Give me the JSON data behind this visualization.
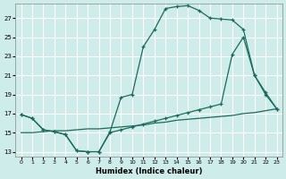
{
  "xlabel": "Humidex (Indice chaleur)",
  "bg_color": "#ceecea",
  "line_color": "#1a6b5a",
  "grid_color": "#ffffff",
  "xlim": [
    -0.5,
    23.5
  ],
  "ylim": [
    12.5,
    28.5
  ],
  "xticks": [
    0,
    1,
    2,
    3,
    4,
    5,
    6,
    7,
    8,
    9,
    10,
    11,
    12,
    13,
    14,
    15,
    16,
    17,
    18,
    19,
    20,
    21,
    22,
    23
  ],
  "yticks": [
    13,
    15,
    17,
    19,
    21,
    23,
    25,
    27
  ],
  "curve1_x": [
    0,
    1,
    2,
    3,
    4,
    5,
    6,
    7,
    8,
    9,
    10,
    11,
    12,
    13,
    14,
    15,
    16,
    17,
    18,
    19,
    20,
    21,
    22,
    23
  ],
  "curve1_y": [
    16.9,
    16.5,
    15.3,
    15.1,
    14.8,
    13.1,
    13.0,
    13.0,
    15.1,
    18.7,
    19.0,
    24.0,
    25.8,
    28.0,
    28.2,
    28.3,
    27.8,
    27.0,
    26.9,
    26.8,
    25.8,
    21.0,
    19.0,
    17.5
  ],
  "curve2_x": [
    0,
    1,
    2,
    3,
    4,
    5,
    6,
    7,
    8,
    9,
    10,
    11,
    12,
    13,
    14,
    15,
    16,
    17,
    18,
    19,
    20,
    21,
    22,
    23
  ],
  "curve2_y": [
    15.0,
    15.0,
    15.1,
    15.2,
    15.2,
    15.3,
    15.4,
    15.4,
    15.5,
    15.6,
    15.7,
    15.8,
    16.0,
    16.1,
    16.3,
    16.4,
    16.5,
    16.6,
    16.7,
    16.8,
    17.0,
    17.1,
    17.3,
    17.5
  ],
  "curve3_x": [
    0,
    1,
    2,
    3,
    4,
    5,
    6,
    7,
    8,
    9,
    10,
    11,
    12,
    13,
    14,
    15,
    16,
    17,
    18,
    19,
    20,
    21,
    22,
    23
  ],
  "curve3_y": [
    16.9,
    16.5,
    15.3,
    15.1,
    14.8,
    13.1,
    13.0,
    13.0,
    15.0,
    15.3,
    15.6,
    15.9,
    16.2,
    16.5,
    16.8,
    17.1,
    17.4,
    17.7,
    18.0,
    23.2,
    25.0,
    21.0,
    19.2,
    17.5
  ]
}
